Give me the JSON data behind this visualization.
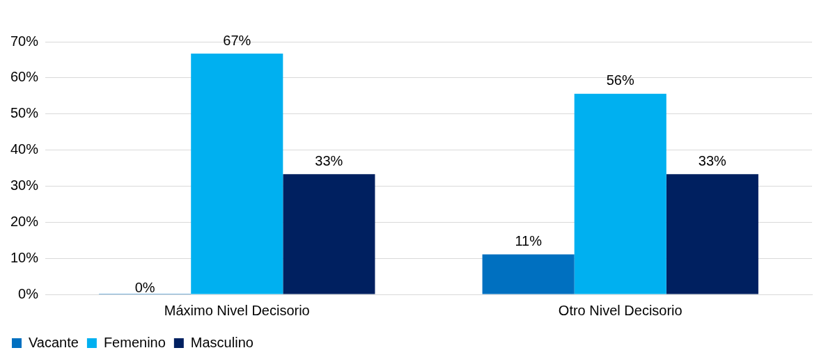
{
  "chart_data": {
    "type": "bar",
    "categories": [
      "Máximo Nivel Decisorio",
      "Otro Nivel Decisorio"
    ],
    "series": [
      {
        "name": "Vacante",
        "color": "#0070c0",
        "values": [
          0,
          11.1
        ],
        "value_labels": [
          "0%",
          "11%"
        ]
      },
      {
        "name": "Femenino",
        "color": "#00b0f0",
        "values": [
          66.7,
          55.6
        ],
        "value_labels": [
          "67%",
          "56%"
        ]
      },
      {
        "name": "Masculino",
        "color": "#002060",
        "values": [
          33.3,
          33.3
        ],
        "value_labels": [
          "33%",
          "33%"
        ]
      }
    ],
    "ylim": [
      0,
      70
    ],
    "yticks": [
      {
        "value": 0,
        "label": "0%"
      },
      {
        "value": 10,
        "label": "10%"
      },
      {
        "value": 20,
        "label": "20%"
      },
      {
        "value": 30,
        "label": "30%"
      },
      {
        "value": 40,
        "label": "40%"
      },
      {
        "value": 50,
        "label": "50%"
      },
      {
        "value": 60,
        "label": "60%"
      },
      {
        "value": 70,
        "label": "70%"
      }
    ],
    "grid": "y",
    "legend": "bottom left"
  }
}
